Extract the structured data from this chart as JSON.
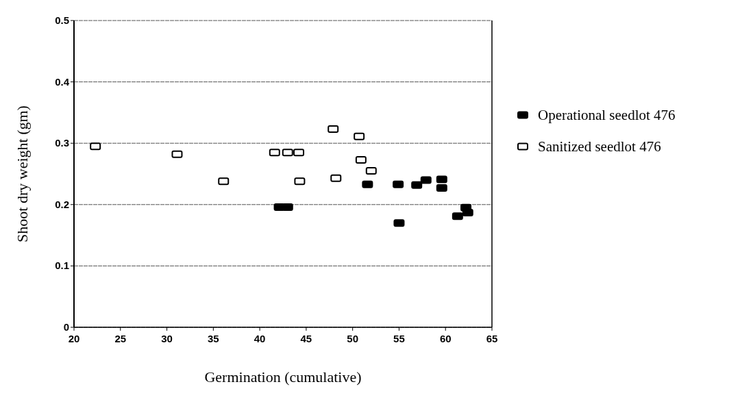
{
  "chart_data": {
    "type": "scatter",
    "xlabel": "Germination (cumulative)",
    "ylabel": "Shoot dry weight (gm)",
    "xlim": [
      20,
      65
    ],
    "xticks": [
      20,
      25,
      30,
      35,
      40,
      45,
      50,
      55,
      60,
      65
    ],
    "ylim": [
      0,
      0.5
    ],
    "yticks": [
      0,
      0.1,
      0.2,
      0.3,
      0.4,
      0.5
    ],
    "grid": "y",
    "legend": "right",
    "marker": "square",
    "series": [
      {
        "name": "Operational seedlot 476",
        "color": "#000000",
        "x": [
          42.1,
          43.0,
          51.6,
          54.9,
          55.0,
          56.9,
          57.9,
          59.6,
          59.6,
          61.3,
          62.2,
          62.4
        ],
        "values": [
          0.196,
          0.196,
          0.233,
          0.233,
          0.17,
          0.232,
          0.24,
          0.241,
          0.227,
          0.181,
          0.195,
          0.187
        ]
      },
      {
        "name": "Sanitized seedlot 476",
        "color": "#ffffff",
        "x": [
          22.3,
          31.1,
          36.1,
          41.6,
          43.0,
          44.2,
          44.3,
          47.9,
          48.2,
          50.7,
          50.9,
          52.0
        ],
        "values": [
          0.295,
          0.282,
          0.238,
          0.285,
          0.285,
          0.285,
          0.238,
          0.323,
          0.243,
          0.311,
          0.273,
          0.255
        ]
      }
    ]
  }
}
